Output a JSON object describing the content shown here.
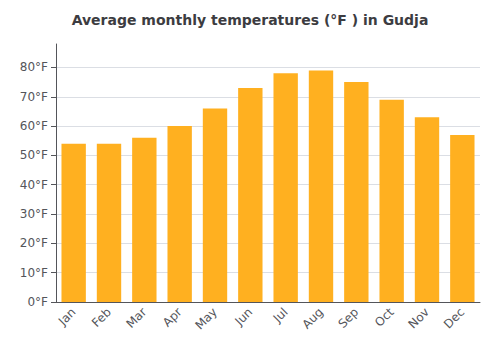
{
  "chart_data": {
    "type": "bar",
    "title": "Average monthly temperatures (°F ) in Gudja",
    "categories": [
      "Jan",
      "Feb",
      "Mar",
      "Apr",
      "May",
      "Jun",
      "Jul",
      "Aug",
      "Sep",
      "Oct",
      "Nov",
      "Dec"
    ],
    "values": [
      54,
      54,
      56,
      60,
      66,
      73,
      78,
      79,
      75,
      69,
      63,
      57
    ],
    "color": "#FFB020",
    "ylim": [
      0,
      88
    ],
    "yticks": [
      {
        "value": 0,
        "label": "0°F"
      },
      {
        "value": 10,
        "label": "10°F"
      },
      {
        "value": 20,
        "label": "20°F"
      },
      {
        "value": 30,
        "label": "30°F"
      },
      {
        "value": 40,
        "label": "40°F"
      },
      {
        "value": 50,
        "label": "50°F"
      },
      {
        "value": 60,
        "label": "60°F"
      },
      {
        "value": 70,
        "label": "70°F"
      },
      {
        "value": 80,
        "label": "80°F"
      }
    ],
    "grid": true
  }
}
